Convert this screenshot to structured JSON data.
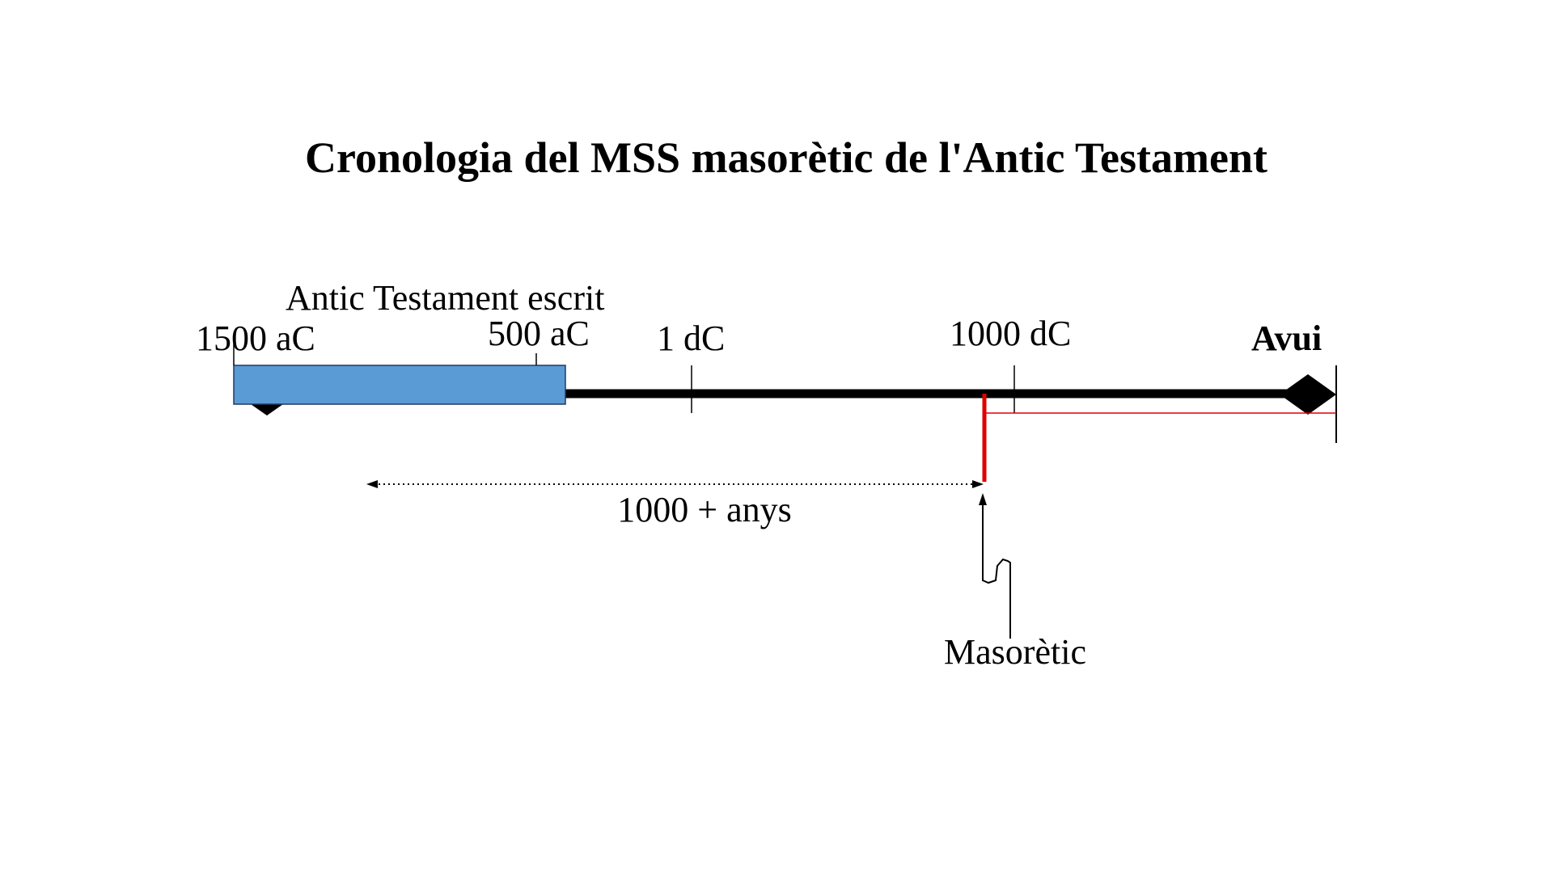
{
  "title": "Cronologia del MSS masorètic de l'Antic Testament",
  "span_label": "Antic Testament escrit",
  "timeline": {
    "labels": [
      "1500 aC",
      "500 aC",
      "1 dC",
      "1000 dC",
      "Avui"
    ]
  },
  "gap_label": "1000 + anys",
  "marker_label": "Masorètic"
}
